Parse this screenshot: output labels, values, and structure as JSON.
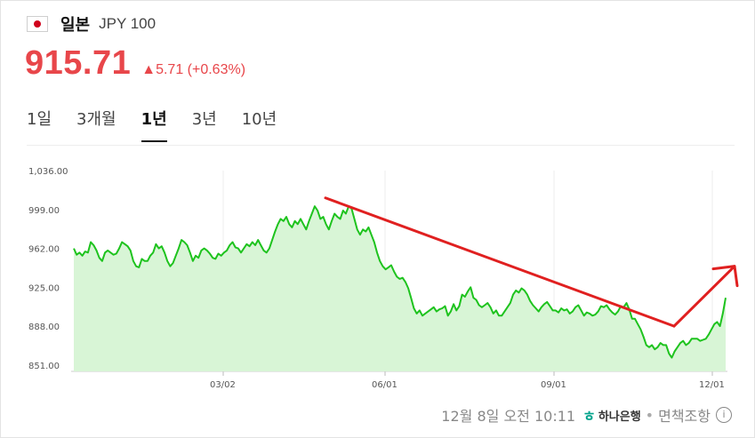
{
  "header": {
    "flag_icon": "japan-flag-icon",
    "country": "일본",
    "code": "JPY 100"
  },
  "quote": {
    "price": "915.71",
    "change": "▲5.71 (+0.63%)",
    "color": "#e8464a"
  },
  "tabs": [
    {
      "label": "1일",
      "active": false
    },
    {
      "label": "3개월",
      "active": false
    },
    {
      "label": "1년",
      "active": true
    },
    {
      "label": "3년",
      "active": false
    },
    {
      "label": "10년",
      "active": false
    }
  ],
  "chart_data": {
    "type": "area",
    "y_ticks": [
      "1,036.00",
      "999.00",
      "962.00",
      "925.00",
      "888.00",
      "851.00"
    ],
    "y_tick_values": [
      1036,
      999,
      962,
      925,
      888,
      851
    ],
    "x_ticks": [
      "03/02",
      "06/01",
      "09/01",
      "12/01"
    ],
    "ylim": [
      845,
      1036
    ],
    "line_color": "#1ec31e",
    "fill_color": "#d8f5d6",
    "grid": true,
    "points": [
      962,
      956,
      958,
      955,
      959,
      958,
      968,
      965,
      960,
      953,
      950,
      958,
      960,
      958,
      956,
      957,
      962,
      968,
      966,
      964,
      960,
      950,
      945,
      944,
      952,
      950,
      950,
      955,
      958,
      966,
      962,
      964,
      958,
      950,
      945,
      948,
      955,
      962,
      970,
      968,
      965,
      958,
      950,
      955,
      953,
      960,
      962,
      960,
      957,
      953,
      952,
      957,
      955,
      958,
      960,
      965,
      968,
      963,
      962,
      958,
      962,
      966,
      964,
      968,
      965,
      970,
      965,
      960,
      958,
      962,
      970,
      978,
      985,
      990,
      988,
      992,
      985,
      982,
      988,
      985,
      990,
      985,
      980,
      988,
      995,
      1002,
      998,
      990,
      992,
      985,
      980,
      988,
      995,
      992,
      990,
      998,
      995,
      1002,
      1000,
      990,
      980,
      975,
      980,
      978,
      982,
      975,
      968,
      958,
      950,
      945,
      942,
      944,
      946,
      940,
      935,
      933,
      934,
      930,
      924,
      915,
      905,
      900,
      903,
      898,
      900,
      902,
      904,
      906,
      902,
      904,
      905,
      907,
      898,
      902,
      909,
      903,
      907,
      918,
      916,
      921,
      925,
      915,
      913,
      908,
      906,
      908,
      910,
      906,
      900,
      903,
      898,
      898,
      902,
      906,
      910,
      918,
      922,
      920,
      924,
      922,
      918,
      912,
      908,
      905,
      902,
      906,
      909,
      911,
      907,
      903,
      903,
      901,
      905,
      903,
      904,
      900,
      902,
      906,
      908,
      903,
      898,
      901,
      900,
      898,
      899,
      902,
      907,
      906,
      908,
      904,
      901,
      899,
      902,
      907,
      906,
      910,
      904,
      895,
      895,
      890,
      885,
      878,
      870,
      868,
      870,
      866,
      868,
      872,
      870,
      870,
      862,
      858,
      864,
      868,
      872,
      874,
      870,
      872,
      876,
      876,
      876,
      874,
      875,
      876,
      880,
      885,
      890,
      892,
      888,
      900,
      915
    ],
    "annotations": [
      {
        "type": "arrow",
        "color": "#e02020",
        "from": [
          "≈05/01",
          1010
        ],
        "to": [
          "≈11/15",
          888
        ]
      },
      {
        "type": "arrow",
        "color": "#e02020",
        "from": [
          "≈11/15",
          888
        ],
        "to": [
          "≈12/10",
          945
        ]
      }
    ]
  },
  "footer": {
    "timestamp": "12월 8일 오전 10:11",
    "logo_mark": "ㅎ",
    "logo_text": "하나은행",
    "separator": "•",
    "disclaimer": "면책조항",
    "info_icon": "info-icon",
    "info_glyph": "i"
  }
}
